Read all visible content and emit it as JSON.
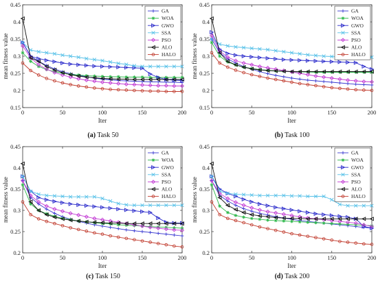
{
  "figure": {
    "panels": [
      {
        "letter": "(a)",
        "title": "Task 50"
      },
      {
        "letter": "(b)",
        "title": "Task 100"
      },
      {
        "letter": "(c)",
        "title": "Task 150"
      },
      {
        "letter": "(d)",
        "title": "Task 200"
      }
    ]
  },
  "chart_data": [
    {
      "type": "line",
      "caption": "(a) Task 50",
      "xlabel": "Iter",
      "ylabel": "mean fitness value",
      "xlim": [
        0,
        200
      ],
      "ylim": [
        0.15,
        0.45
      ],
      "xticks": [
        "0",
        "50",
        "100",
        "150",
        "200"
      ],
      "yticks": [
        "0.15",
        "0.2",
        "0.25",
        "0.3",
        "0.35",
        "0.4",
        "0.45"
      ],
      "legend_position": "top-right",
      "x": [
        0,
        10,
        20,
        30,
        40,
        50,
        60,
        70,
        80,
        90,
        100,
        110,
        120,
        130,
        140,
        150,
        160,
        170,
        180,
        190,
        200
      ],
      "series": [
        {
          "name": "GA",
          "color": "#3b3bd1",
          "marker": "plus",
          "values": [
            0.34,
            0.3,
            0.285,
            0.273,
            0.263,
            0.255,
            0.249,
            0.244,
            0.24,
            0.236,
            0.233,
            0.231,
            0.229,
            0.228,
            0.227,
            0.226,
            0.225,
            0.225,
            0.224,
            0.224,
            0.223
          ]
        },
        {
          "name": "WOA",
          "color": "#2fb84b",
          "marker": "star",
          "values": [
            0.31,
            0.285,
            0.27,
            0.261,
            0.255,
            0.25,
            0.247,
            0.245,
            0.243,
            0.242,
            0.241,
            0.24,
            0.24,
            0.239,
            0.239,
            0.239,
            0.238,
            0.238,
            0.238,
            0.238,
            0.238
          ]
        },
        {
          "name": "GWO",
          "color": "#2a2acb",
          "marker": "triangle-right",
          "values": [
            0.34,
            0.3,
            0.293,
            0.288,
            0.284,
            0.28,
            0.277,
            0.275,
            0.273,
            0.271,
            0.27,
            0.269,
            0.268,
            0.267,
            0.266,
            0.265,
            0.248,
            0.238,
            0.232,
            0.23,
            0.229
          ]
        },
        {
          "name": "SSA",
          "color": "#55c0e8",
          "marker": "x",
          "values": [
            0.34,
            0.318,
            0.313,
            0.31,
            0.307,
            0.303,
            0.3,
            0.297,
            0.293,
            0.29,
            0.287,
            0.283,
            0.279,
            0.276,
            0.272,
            0.27,
            0.27,
            0.27,
            0.27,
            0.27,
            0.27
          ]
        },
        {
          "name": "PSO",
          "color": "#c23bd4",
          "marker": "diamond",
          "values": [
            0.33,
            0.295,
            0.275,
            0.262,
            0.252,
            0.245,
            0.239,
            0.234,
            0.23,
            0.227,
            0.224,
            0.222,
            0.22,
            0.218,
            0.217,
            0.216,
            0.215,
            0.214,
            0.214,
            0.213,
            0.213
          ]
        },
        {
          "name": "ALO",
          "color": "#111111",
          "marker": "triangle-left",
          "values": [
            0.41,
            0.295,
            0.285,
            0.27,
            0.26,
            0.252,
            0.246,
            0.242,
            0.239,
            0.237,
            0.235,
            0.234,
            0.233,
            0.233,
            0.232,
            0.232,
            0.232,
            0.232,
            0.232,
            0.232,
            0.232
          ]
        },
        {
          "name": "HALO",
          "color": "#c0392b",
          "marker": "circle",
          "values": [
            0.28,
            0.258,
            0.245,
            0.235,
            0.228,
            0.222,
            0.217,
            0.213,
            0.21,
            0.207,
            0.205,
            0.203,
            0.202,
            0.201,
            0.2,
            0.199,
            0.198,
            0.198,
            0.197,
            0.197,
            0.197
          ]
        }
      ]
    },
    {
      "type": "line",
      "caption": "(b) Task 100",
      "xlabel": "Iter",
      "ylabel": "mean fitness value",
      "xlim": [
        0,
        200
      ],
      "ylim": [
        0.15,
        0.45
      ],
      "xticks": [
        "0",
        "50",
        "100",
        "150",
        "200"
      ],
      "yticks": [
        "0.15",
        "0.2",
        "0.25",
        "0.3",
        "0.35",
        "0.4",
        "0.45"
      ],
      "legend_position": "top-right",
      "x": [
        0,
        10,
        20,
        30,
        40,
        50,
        60,
        70,
        80,
        90,
        100,
        110,
        120,
        130,
        140,
        150,
        160,
        170,
        180,
        190,
        200
      ],
      "series": [
        {
          "name": "GA",
          "color": "#3b3bd1",
          "marker": "plus",
          "values": [
            0.35,
            0.31,
            0.292,
            0.28,
            0.27,
            0.262,
            0.255,
            0.249,
            0.244,
            0.24,
            0.236,
            0.233,
            0.23,
            0.228,
            0.226,
            0.224,
            0.222,
            0.22,
            0.218,
            0.217,
            0.216
          ]
        },
        {
          "name": "WOA",
          "color": "#2fb84b",
          "marker": "star",
          "values": [
            0.34,
            0.3,
            0.283,
            0.274,
            0.268,
            0.264,
            0.261,
            0.259,
            0.257,
            0.256,
            0.255,
            0.254,
            0.254,
            0.253,
            0.253,
            0.253,
            0.253,
            0.253,
            0.253,
            0.253,
            0.253
          ]
        },
        {
          "name": "GWO",
          "color": "#2a2acb",
          "marker": "triangle-right",
          "values": [
            0.37,
            0.32,
            0.308,
            0.303,
            0.3,
            0.298,
            0.296,
            0.294,
            0.292,
            0.29,
            0.289,
            0.288,
            0.287,
            0.286,
            0.285,
            0.284,
            0.283,
            0.282,
            0.281,
            0.27,
            0.262
          ]
        },
        {
          "name": "SSA",
          "color": "#55c0e8",
          "marker": "x",
          "values": [
            0.35,
            0.335,
            0.33,
            0.327,
            0.325,
            0.323,
            0.321,
            0.319,
            0.316,
            0.313,
            0.31,
            0.307,
            0.304,
            0.302,
            0.3,
            0.299,
            0.298,
            0.298,
            0.297,
            0.297,
            0.297
          ]
        },
        {
          "name": "PSO",
          "color": "#c23bd4",
          "marker": "diamond",
          "values": [
            0.36,
            0.315,
            0.297,
            0.287,
            0.28,
            0.275,
            0.27,
            0.266,
            0.262,
            0.258,
            0.254,
            0.25,
            0.246,
            0.242,
            0.239,
            0.236,
            0.233,
            0.23,
            0.228,
            0.226,
            0.225
          ]
        },
        {
          "name": "ALO",
          "color": "#111111",
          "marker": "triangle-left",
          "values": [
            0.41,
            0.31,
            0.285,
            0.275,
            0.268,
            0.263,
            0.26,
            0.258,
            0.257,
            0.256,
            0.255,
            0.255,
            0.255,
            0.255,
            0.255,
            0.255,
            0.255,
            0.255,
            0.255,
            0.255,
            0.255
          ]
        },
        {
          "name": "HALO",
          "color": "#c0392b",
          "marker": "circle",
          "values": [
            0.31,
            0.28,
            0.268,
            0.259,
            0.252,
            0.246,
            0.241,
            0.236,
            0.232,
            0.228,
            0.224,
            0.22,
            0.217,
            0.214,
            0.211,
            0.208,
            0.206,
            0.204,
            0.202,
            0.201,
            0.2
          ]
        }
      ]
    },
    {
      "type": "line",
      "caption": "(c) Task 150",
      "xlabel": "Iter",
      "ylabel": "mean fitness value",
      "xlim": [
        0,
        200
      ],
      "ylim": [
        0.2,
        0.45
      ],
      "xticks": [
        "0",
        "50",
        "100",
        "150",
        "200"
      ],
      "yticks": [
        "0.2",
        "0.25",
        "0.3",
        "0.35",
        "0.4",
        "0.45"
      ],
      "legend_position": "top-right",
      "x": [
        0,
        10,
        20,
        30,
        40,
        50,
        60,
        70,
        80,
        90,
        100,
        110,
        120,
        130,
        140,
        150,
        160,
        170,
        180,
        190,
        200
      ],
      "series": [
        {
          "name": "GA",
          "color": "#3b3bd1",
          "marker": "plus",
          "values": [
            0.37,
            0.33,
            0.315,
            0.303,
            0.293,
            0.285,
            0.279,
            0.274,
            0.27,
            0.266,
            0.263,
            0.26,
            0.257,
            0.254,
            0.252,
            0.25,
            0.248,
            0.246,
            0.244,
            0.242,
            0.24
          ]
        },
        {
          "name": "WOA",
          "color": "#2fb84b",
          "marker": "star",
          "values": [
            0.36,
            0.315,
            0.3,
            0.292,
            0.286,
            0.281,
            0.278,
            0.275,
            0.273,
            0.271,
            0.269,
            0.268,
            0.266,
            0.265,
            0.264,
            0.263,
            0.262,
            0.261,
            0.26,
            0.259,
            0.258
          ]
        },
        {
          "name": "GWO",
          "color": "#2a2acb",
          "marker": "triangle-right",
          "values": [
            0.38,
            0.345,
            0.33,
            0.325,
            0.321,
            0.318,
            0.315,
            0.313,
            0.311,
            0.309,
            0.307,
            0.305,
            0.303,
            0.301,
            0.299,
            0.297,
            0.295,
            0.282,
            0.272,
            0.27,
            0.27
          ]
        },
        {
          "name": "SSA",
          "color": "#55c0e8",
          "marker": "x",
          "values": [
            0.38,
            0.345,
            0.338,
            0.335,
            0.334,
            0.333,
            0.332,
            0.332,
            0.332,
            0.332,
            0.328,
            0.322,
            0.316,
            0.313,
            0.312,
            0.312,
            0.312,
            0.312,
            0.312,
            0.312,
            0.312
          ]
        },
        {
          "name": "PSO",
          "color": "#c23bd4",
          "marker": "diamond",
          "values": [
            0.37,
            0.335,
            0.32,
            0.31,
            0.303,
            0.298,
            0.293,
            0.289,
            0.285,
            0.281,
            0.278,
            0.275,
            0.272,
            0.269,
            0.266,
            0.263,
            0.26,
            0.258,
            0.256,
            0.254,
            0.253
          ]
        },
        {
          "name": "ALO",
          "color": "#111111",
          "marker": "triangle-left",
          "values": [
            0.41,
            0.32,
            0.3,
            0.29,
            0.284,
            0.28,
            0.277,
            0.275,
            0.273,
            0.272,
            0.271,
            0.27,
            0.27,
            0.269,
            0.269,
            0.269,
            0.269,
            0.269,
            0.269,
            0.269,
            0.269
          ]
        },
        {
          "name": "HALO",
          "color": "#c0392b",
          "marker": "circle",
          "values": [
            0.32,
            0.29,
            0.28,
            0.274,
            0.269,
            0.264,
            0.259,
            0.255,
            0.251,
            0.247,
            0.244,
            0.24,
            0.237,
            0.234,
            0.231,
            0.228,
            0.225,
            0.222,
            0.219,
            0.216,
            0.214
          ]
        }
      ]
    },
    {
      "type": "line",
      "caption": "(d) Task 200",
      "xlabel": "Iter",
      "ylabel": "mean fitness value",
      "xlim": [
        0,
        200
      ],
      "ylim": [
        0.2,
        0.45
      ],
      "xticks": [
        "0",
        "50",
        "100",
        "150",
        "200"
      ],
      "yticks": [
        "0.2",
        "0.25",
        "0.3",
        "0.35",
        "0.4",
        "0.45"
      ],
      "legend_position": "top-right",
      "x": [
        0,
        10,
        20,
        30,
        40,
        50,
        60,
        70,
        80,
        90,
        100,
        110,
        120,
        130,
        140,
        150,
        160,
        170,
        180,
        190,
        200
      ],
      "series": [
        {
          "name": "GA",
          "color": "#3b3bd1",
          "marker": "plus",
          "values": [
            0.37,
            0.335,
            0.322,
            0.312,
            0.304,
            0.298,
            0.293,
            0.289,
            0.285,
            0.282,
            0.279,
            0.276,
            0.274,
            0.272,
            0.27,
            0.268,
            0.266,
            0.264,
            0.262,
            0.26,
            0.258
          ]
        },
        {
          "name": "WOA",
          "color": "#2fb84b",
          "marker": "star",
          "values": [
            0.36,
            0.31,
            0.295,
            0.288,
            0.284,
            0.281,
            0.279,
            0.277,
            0.276,
            0.275,
            0.274,
            0.273,
            0.272,
            0.271,
            0.27,
            0.269,
            0.268,
            0.267,
            0.266,
            0.265,
            0.264
          ]
        },
        {
          "name": "GWO",
          "color": "#2a2acb",
          "marker": "triangle-right",
          "values": [
            0.38,
            0.35,
            0.34,
            0.333,
            0.326,
            0.32,
            0.315,
            0.311,
            0.307,
            0.304,
            0.301,
            0.298,
            0.295,
            0.292,
            0.29,
            0.288,
            0.286,
            0.284,
            0.28,
            0.262,
            0.258
          ]
        },
        {
          "name": "SSA",
          "color": "#55c0e8",
          "marker": "x",
          "values": [
            0.38,
            0.345,
            0.34,
            0.338,
            0.337,
            0.336,
            0.335,
            0.335,
            0.335,
            0.335,
            0.334,
            0.334,
            0.333,
            0.333,
            0.333,
            0.325,
            0.314,
            0.311,
            0.311,
            0.311,
            0.311
          ]
        },
        {
          "name": "PSO",
          "color": "#c23bd4",
          "marker": "diamond",
          "values": [
            0.37,
            0.34,
            0.328,
            0.319,
            0.312,
            0.306,
            0.301,
            0.297,
            0.294,
            0.291,
            0.288,
            0.285,
            0.282,
            0.28,
            0.278,
            0.276,
            0.274,
            0.272,
            0.27,
            0.266,
            0.262
          ]
        },
        {
          "name": "ALO",
          "color": "#111111",
          "marker": "triangle-left",
          "values": [
            0.41,
            0.33,
            0.312,
            0.302,
            0.295,
            0.29,
            0.287,
            0.285,
            0.283,
            0.282,
            0.281,
            0.281,
            0.28,
            0.28,
            0.28,
            0.28,
            0.28,
            0.28,
            0.28,
            0.28,
            0.28
          ]
        },
        {
          "name": "HALO",
          "color": "#c0392b",
          "marker": "circle",
          "values": [
            0.32,
            0.29,
            0.281,
            0.276,
            0.271,
            0.266,
            0.261,
            0.257,
            0.253,
            0.249,
            0.245,
            0.242,
            0.239,
            0.236,
            0.233,
            0.23,
            0.227,
            0.225,
            0.223,
            0.221,
            0.22
          ]
        }
      ]
    }
  ]
}
